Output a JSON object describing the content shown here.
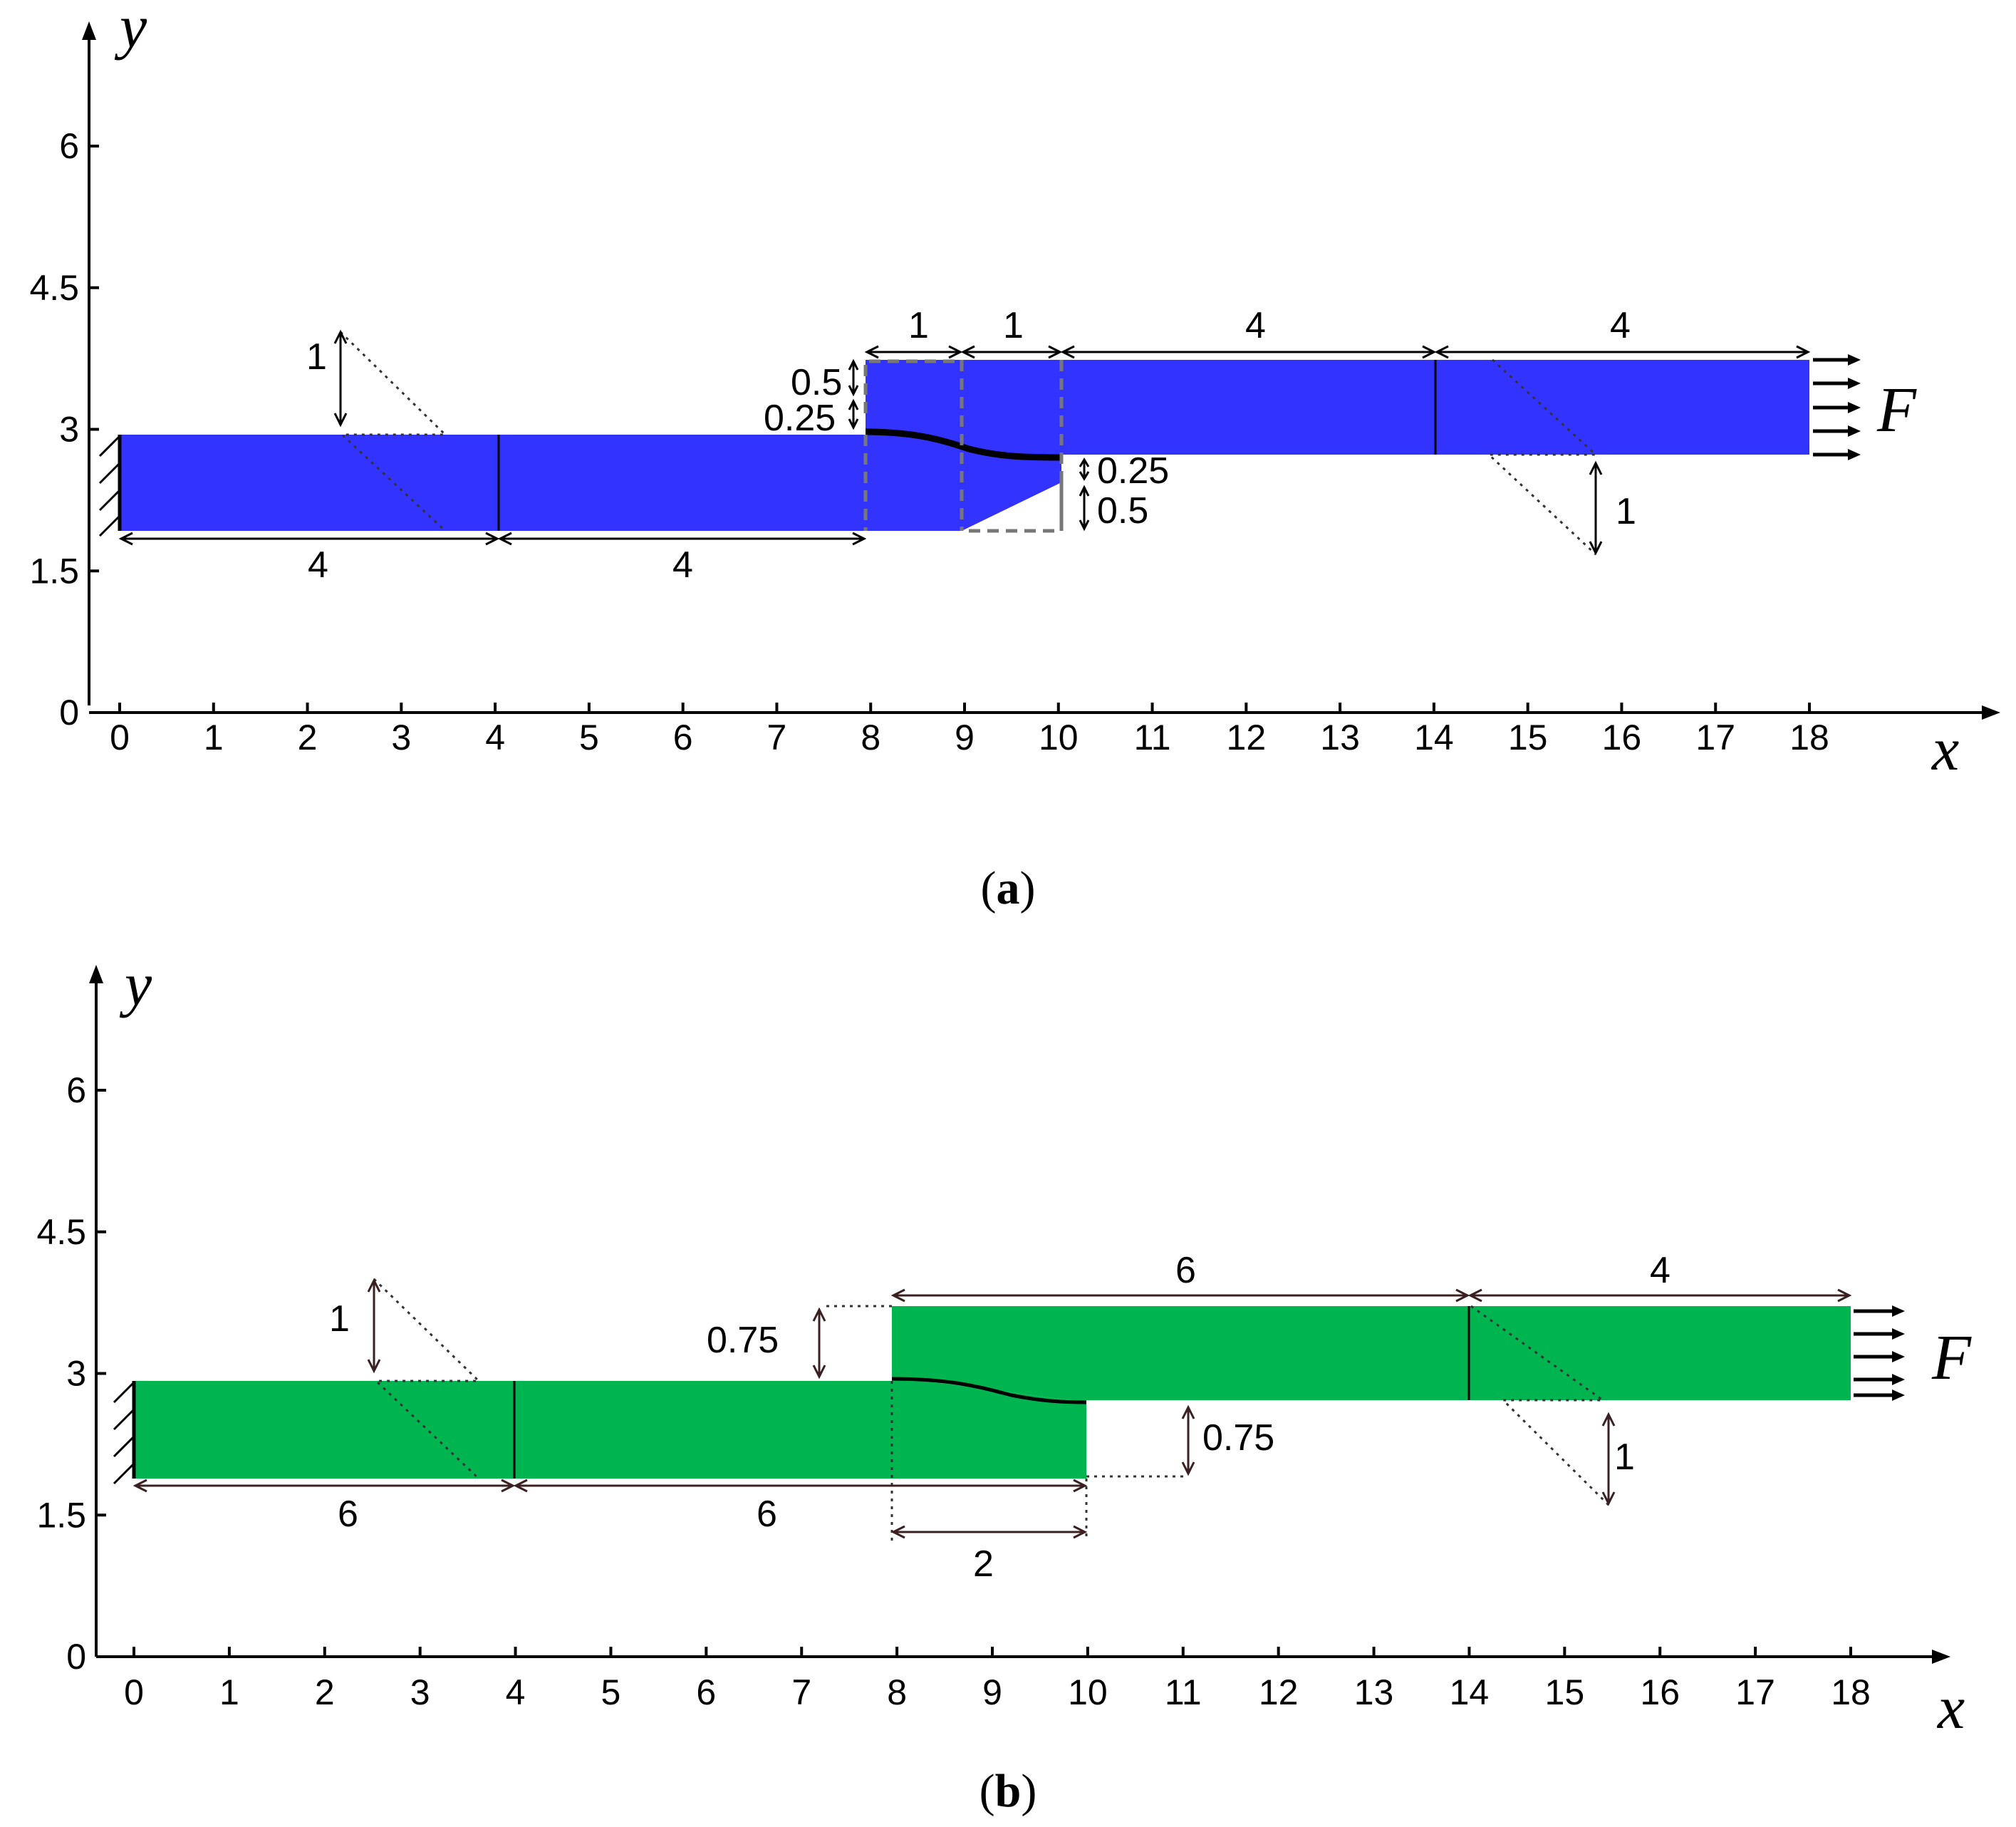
{
  "panels": [
    {
      "id": "a",
      "caption_letter": "a",
      "x_axis_name": "x",
      "y_axis_name": "y",
      "x_ticks": [
        "0",
        "1",
        "2",
        "3",
        "4",
        "5",
        "6",
        "7",
        "8",
        "9",
        "10",
        "11",
        "12",
        "13",
        "14",
        "15",
        "16",
        "17",
        "18"
      ],
      "y_ticks": [
        "0",
        "1.5",
        "3",
        "4.5",
        "6"
      ],
      "force_label": "F",
      "colors": {
        "specimen": "#3333ff"
      },
      "dimensions": {
        "left_block_1": "4",
        "left_block_2": "4",
        "overlap_1": "1",
        "overlap_2": "1",
        "right_block_1": "4",
        "right_block_2": "4",
        "left_rotation": "1",
        "right_rotation": "1",
        "top_chamfer": "0.5",
        "top_step": "0.25",
        "bottom_step": "0.25",
        "bottom_chamfer": "0.5"
      }
    },
    {
      "id": "b",
      "caption_letter": "b",
      "x_axis_name": "x",
      "y_axis_name": "y",
      "x_ticks": [
        "0",
        "1",
        "2",
        "3",
        "4",
        "5",
        "6",
        "7",
        "8",
        "9",
        "10",
        "11",
        "12",
        "13",
        "14",
        "15",
        "16",
        "17",
        "18"
      ],
      "y_ticks": [
        "0",
        "1.5",
        "3",
        "4.5",
        "6"
      ],
      "force_label": "F",
      "colors": {
        "specimen": "#00b550"
      },
      "dimensions": {
        "left_block_1": "6",
        "left_block_2": "6",
        "overlap": "2",
        "right_block_1": "6",
        "right_block_2": "4",
        "left_rotation": "1",
        "right_rotation": "1",
        "top_offset": "0.75",
        "bottom_offset": "0.75"
      }
    }
  ]
}
